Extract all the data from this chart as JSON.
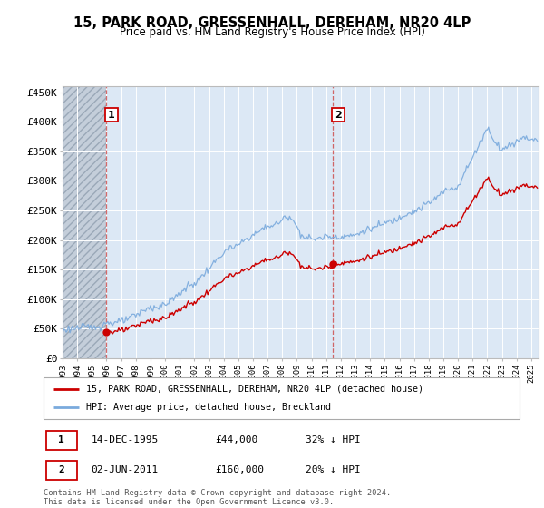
{
  "title": "15, PARK ROAD, GRESSENHALL, DEREHAM, NR20 4LP",
  "subtitle": "Price paid vs. HM Land Registry's House Price Index (HPI)",
  "ylim": [
    0,
    460000
  ],
  "yticks": [
    0,
    50000,
    100000,
    150000,
    200000,
    250000,
    300000,
    350000,
    400000,
    450000
  ],
  "ytick_labels": [
    "£0",
    "£50K",
    "£100K",
    "£150K",
    "£200K",
    "£250K",
    "£300K",
    "£350K",
    "£400K",
    "£450K"
  ],
  "hpi_color": "#7aaadd",
  "price_color": "#cc0000",
  "legend_label1": "15, PARK ROAD, GRESSENHALL, DEREHAM, NR20 4LP (detached house)",
  "legend_label2": "HPI: Average price, detached house, Breckland",
  "ann1_date": "14-DEC-1995",
  "ann1_price": "£44,000",
  "ann1_hpi": "32% ↓ HPI",
  "ann2_date": "02-JUN-2011",
  "ann2_price": "£160,000",
  "ann2_hpi": "20% ↓ HPI",
  "footer": "Contains HM Land Registry data © Crown copyright and database right 2024.\nThis data is licensed under the Open Government Licence v3.0.",
  "purchase1_year": 1995.95,
  "purchase1_value": 44000,
  "purchase2_year": 2011.42,
  "purchase2_value": 160000,
  "xstart": 1993,
  "xend": 2025.5
}
